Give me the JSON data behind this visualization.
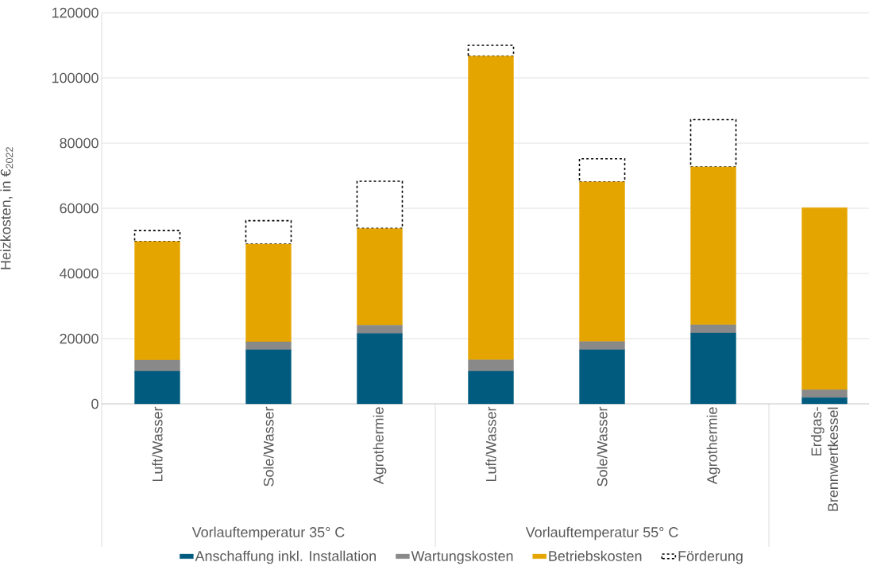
{
  "chart_data": {
    "type": "bar",
    "stacked": true,
    "ylabel": "Heizkosten, in €$_{2022}$",
    "categories": [
      "Luft/Wasser",
      "Sole/Wasser",
      "Agrothermie",
      "Luft/Wasser",
      "Sole/Wasser",
      "Agrothermie",
      "Erdgas-Brennwertkessel"
    ],
    "series": [
      {
        "name": "Anschaffung inkl. Installation",
        "color": "#005b7f",
        "values": [
          10000,
          16600,
          21600,
          10000,
          16600,
          21700,
          1900
        ]
      },
      {
        "name": "Wartungskosten",
        "color": "#898989",
        "values": [
          3400,
          2400,
          2500,
          3500,
          2500,
          2500,
          2400
        ]
      },
      {
        "name": "Betriebskosten",
        "color": "#e5a500",
        "values": [
          36400,
          30000,
          29700,
          93200,
          49000,
          48500,
          55900
        ]
      },
      {
        "name": "Förderung",
        "color": "#000000",
        "line_style": "dashed",
        "values": [
          3400,
          7200,
          14500,
          3300,
          7100,
          14500,
          null
        ]
      }
    ],
    "ylim": [
      0,
      120000
    ],
    "yticks": [
      0,
      20000,
      40000,
      60000,
      80000,
      100000,
      120000
    ],
    "grid": "y",
    "legend": "bottom",
    "annotations": [
      "Vorlauftemperatur 35° C",
      "Vorlauftemperatur 55° C"
    ]
  }
}
